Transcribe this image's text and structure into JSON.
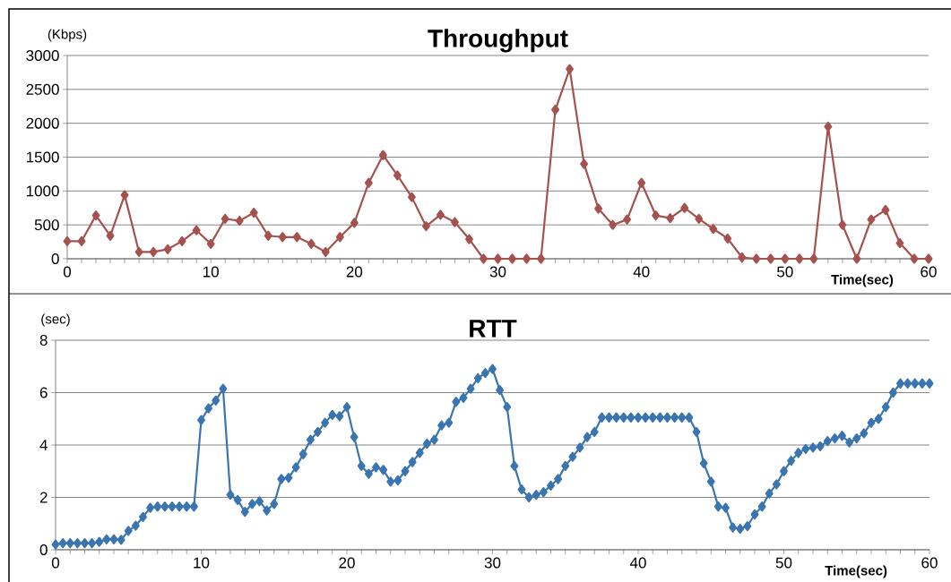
{
  "chart_data": [
    {
      "type": "line",
      "title": "Throughput",
      "ylabel": "(Kbps)",
      "xlabel": "Time(sec)",
      "xlim": [
        0,
        60
      ],
      "ylim": [
        0,
        3000
      ],
      "xticks": [
        0,
        10,
        20,
        30,
        40,
        50,
        60
      ],
      "yticks": [
        0,
        500,
        1000,
        1500,
        2000,
        2500,
        3000
      ],
      "grid": "y",
      "marker": "diamond",
      "x": [
        0,
        1,
        2,
        3,
        4,
        5,
        6,
        7,
        8,
        9,
        10,
        11,
        12,
        13,
        14,
        15,
        16,
        17,
        18,
        19,
        20,
        21,
        22,
        23,
        24,
        25,
        26,
        27,
        28,
        29,
        30,
        31,
        32,
        33,
        34,
        35,
        36,
        37,
        38,
        39,
        40,
        41,
        42,
        43,
        44,
        45,
        46,
        47,
        48,
        49,
        50,
        51,
        52,
        53,
        54,
        55,
        56,
        57,
        58,
        59,
        60
      ],
      "series": [
        {
          "color": "#a5524f",
          "values": [
            260,
            260,
            640,
            340,
            940,
            100,
            100,
            140,
            260,
            420,
            220,
            590,
            560,
            680,
            340,
            320,
            320,
            220,
            100,
            320,
            530,
            1120,
            1530,
            1230,
            910,
            480,
            650,
            540,
            290,
            0,
            0,
            0,
            0,
            0,
            2200,
            2800,
            1400,
            740,
            500,
            580,
            1120,
            640,
            600,
            750,
            590,
            440,
            300,
            20,
            0,
            0,
            0,
            0,
            0,
            1950,
            500,
            0,
            580,
            720,
            230,
            0,
            0
          ]
        }
      ]
    },
    {
      "type": "line",
      "title": "RTT",
      "ylabel": "(sec)",
      "xlabel": "Time(sec)",
      "xlim": [
        0,
        60
      ],
      "ylim": [
        0,
        8
      ],
      "xticks": [
        0,
        10,
        20,
        30,
        40,
        50,
        60
      ],
      "yticks": [
        0,
        2,
        4,
        6,
        8
      ],
      "grid": "y",
      "marker": "diamond",
      "x": [
        0,
        0.5,
        1,
        1.5,
        2,
        2.5,
        3,
        3.5,
        4,
        4.5,
        5,
        5.5,
        6,
        6.5,
        7,
        7.5,
        8,
        8.5,
        9,
        9.5,
        10,
        10.5,
        11,
        11.5,
        12,
        12.5,
        13,
        13.5,
        14,
        14.5,
        15,
        15.5,
        16,
        16.5,
        17,
        17.5,
        18,
        18.5,
        19,
        19.5,
        20,
        20.5,
        21,
        21.5,
        22,
        22.5,
        23,
        23.5,
        24,
        24.5,
        25,
        25.5,
        26,
        26.5,
        27,
        27.5,
        28,
        28.5,
        29,
        29.5,
        30,
        30.5,
        31,
        31.5,
        32,
        32.5,
        33,
        33.5,
        34,
        34.5,
        35,
        35.5,
        36,
        36.5,
        37,
        37.5,
        38,
        38.5,
        39,
        39.5,
        40,
        40.5,
        41,
        41.5,
        42,
        42.5,
        43,
        43.5,
        44,
        44.5,
        45,
        45.5,
        46,
        46.5,
        47,
        47.5,
        48,
        48.5,
        49,
        49.5,
        50,
        50.5,
        51,
        51.5,
        52,
        52.5,
        53,
        53.5,
        54,
        54.5,
        55,
        55.5,
        56,
        56.5,
        57,
        57.5,
        58,
        58.5,
        59,
        59.5,
        60
      ],
      "series": [
        {
          "color": "#3a75b0",
          "values": [
            0.2,
            0.25,
            0.25,
            0.25,
            0.25,
            0.25,
            0.3,
            0.4,
            0.4,
            0.38,
            0.72,
            0.92,
            1.25,
            1.6,
            1.65,
            1.65,
            1.65,
            1.65,
            1.65,
            1.65,
            4.95,
            5.4,
            5.7,
            6.15,
            2.1,
            1.9,
            1.45,
            1.75,
            1.85,
            1.5,
            1.75,
            2.7,
            2.75,
            3.15,
            3.65,
            4.2,
            4.5,
            4.85,
            5.15,
            5.1,
            5.45,
            4.3,
            3.2,
            2.9,
            3.15,
            3.05,
            2.6,
            2.65,
            3.0,
            3.35,
            3.7,
            4.05,
            4.2,
            4.75,
            4.85,
            5.65,
            5.8,
            6.15,
            6.55,
            6.75,
            6.9,
            6.1,
            5.45,
            3.2,
            2.3,
            2.0,
            2.1,
            2.2,
            2.45,
            2.7,
            3.2,
            3.55,
            3.9,
            4.3,
            4.5,
            5.05,
            5.05,
            5.05,
            5.05,
            5.05,
            5.05,
            5.05,
            5.05,
            5.05,
            5.05,
            5.05,
            5.05,
            5.05,
            4.5,
            3.3,
            2.6,
            1.65,
            1.6,
            0.85,
            0.8,
            0.9,
            1.35,
            1.65,
            2.15,
            2.5,
            3.0,
            3.4,
            3.7,
            3.85,
            3.9,
            3.95,
            4.15,
            4.25,
            4.35,
            4.1,
            4.25,
            4.45,
            4.85,
            5.0,
            5.45,
            6.0,
            6.35,
            6.35,
            6.35,
            6.35,
            6.35
          ]
        }
      ]
    }
  ]
}
